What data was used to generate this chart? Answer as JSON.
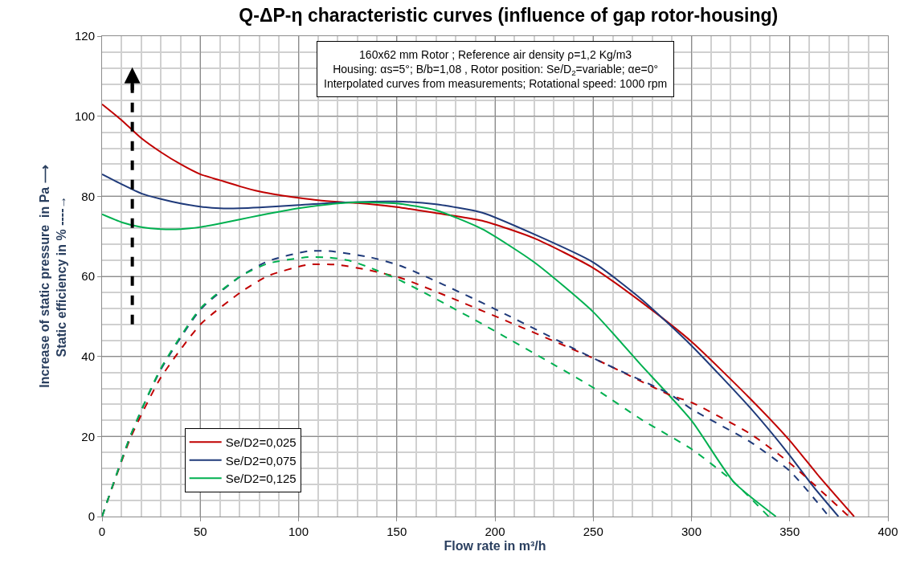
{
  "chart_data": {
    "type": "line",
    "title": "Q-ΔP-η characteristic curves (influence of gap rotor-housing)",
    "xlabel": "Flow rate in m³/h",
    "ylabel": "Increase of static pressure  in Pa ⟶\nStatic efficiency in % ----→",
    "annotations": [
      "160x62 mm Rotor ; Reference air density ρ=1,2 Kg/m3",
      "Housing: αs=5°; B/b=1,08 , Rotor position: Se/D$_{2}$=variable; αe=0°",
      "Interpolated curves from measurements; Rotational speed: 1000 rpm"
    ],
    "xlim": [
      0,
      400
    ],
    "xticks": [
      0,
      50,
      100,
      150,
      200,
      250,
      300,
      350,
      400
    ],
    "ylim": [
      0,
      120
    ],
    "yticks": [
      0,
      20,
      40,
      60,
      80,
      100,
      120
    ],
    "grid": true,
    "legend": "bottom left",
    "marker": "none",
    "series": [
      {
        "name": "Se/D2=0,025",
        "color": "#c00000",
        "line_style": "solid",
        "x": [
          0,
          10,
          20,
          30,
          40,
          50,
          60,
          70,
          80,
          90,
          100,
          110,
          120,
          130,
          150,
          170,
          193.5,
          220,
          250,
          275,
          300,
          330,
          350,
          365,
          382.8
        ],
        "values": [
          103,
          99,
          94.5,
          91,
          88,
          85.5,
          84,
          82.5,
          81.2,
          80.3,
          79.6,
          79,
          78.6,
          78.3,
          77.3,
          75.8,
          73.9,
          69.5,
          62.1,
          53.4,
          43.7,
          29.4,
          19,
          10,
          0
        ]
      },
      {
        "name": "Se/D2=0,075",
        "color": "#1f3a7a",
        "line_style": "solid",
        "x": [
          0,
          10,
          20,
          30,
          40,
          50,
          60,
          70,
          80,
          100,
          120,
          150,
          170,
          193.5,
          220,
          250,
          275,
          300,
          330,
          350,
          362,
          374.8
        ],
        "values": [
          85.5,
          83,
          80.7,
          79.3,
          78.2,
          77.4,
          77,
          77,
          77.2,
          77.8,
          78.4,
          78.7,
          78,
          75.9,
          70.5,
          63.5,
          54.1,
          42.7,
          27.1,
          15.3,
          7.5,
          0
        ]
      },
      {
        "name": "Se/D2=0,125",
        "color": "#00b050",
        "line_style": "solid",
        "x": [
          0,
          10,
          20,
          30,
          40,
          50,
          60,
          70,
          80,
          100,
          120,
          130,
          150,
          170,
          193.5,
          220,
          250,
          273.9,
          300,
          321.6,
          343
        ],
        "values": [
          75.5,
          73.5,
          72.3,
          71.8,
          71.8,
          72.3,
          73.2,
          74.2,
          75.2,
          77,
          78.2,
          78.5,
          78.2,
          76.5,
          71.8,
          63.5,
          51.1,
          38.1,
          24,
          8.6,
          0
        ]
      },
      {
        "color": "#c00000",
        "line_style": "dashed",
        "x": [
          0,
          14.8,
          29.9,
          50.3,
          70.8,
          84.4,
          104.8,
          119.8,
          136.2,
          152.6,
          193.5,
          250.7,
          288.9,
          300.5,
          329.8,
          350.2,
          380.2
        ],
        "values": [
          0,
          20,
          34.7,
          48.1,
          56.1,
          60.1,
          62.9,
          62.9,
          61.5,
          59.5,
          51.4,
          39.4,
          30.4,
          28.4,
          20.7,
          13.3,
          0
        ]
      },
      {
        "color": "#1f3a7a",
        "line_style": "dashed",
        "x": [
          0,
          14.8,
          29.9,
          50.3,
          70.8,
          84.4,
          104.8,
          115.7,
          136.2,
          152.6,
          193.5,
          250.7,
          288.9,
          300.5,
          329.8,
          350.2,
          370
        ],
        "values": [
          0,
          20.6,
          36.7,
          51.8,
          60.1,
          63.8,
          66.3,
          66.3,
          64.8,
          62.5,
          53.4,
          39.4,
          30.6,
          26.7,
          18.7,
          11.3,
          0
        ]
      },
      {
        "color": "#00b050",
        "line_style": "dashed",
        "x": [
          0,
          14.8,
          29.9,
          50.3,
          70.8,
          84.4,
          104.8,
          115.7,
          125.3,
          136.2,
          152.6,
          193.5,
          250.7,
          275.3,
          300.5,
          321.6,
          339.3
        ],
        "values": [
          0,
          20.6,
          37,
          52.1,
          60.1,
          63.2,
          64.8,
          64.7,
          64,
          62.2,
          58.8,
          48.1,
          32,
          24,
          16.7,
          8.6,
          0
        ]
      }
    ]
  }
}
